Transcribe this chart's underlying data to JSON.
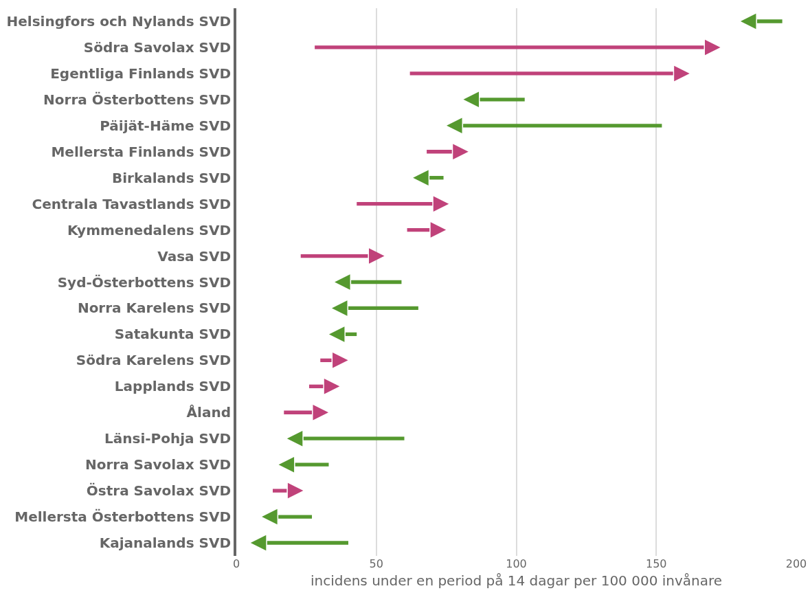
{
  "chart_data": {
    "type": "bar",
    "orientation": "horizontal",
    "xlabel": "incidens under en period på 14 dagar per 100 000 invånare",
    "categories": [
      "Helsingfors och Nylands SVD",
      "Södra Savolax SVD",
      "Egentliga Finlands SVD",
      "Norra Österbottens SVD",
      "Päijät-Häme SVD",
      "Mellersta Finlands SVD",
      "Birkalands SVD",
      "Centrala Tavastlands SVD",
      "Kymmenedalens SVD",
      "Vasa SVD",
      "Syd-Österbottens SVD",
      "Norra Karelens SVD",
      "Satakunta SVD",
      "Södra Karelens SVD",
      "Lapplands SVD",
      "Åland",
      "Länsi-Pohja SVD",
      "Norra Savolax SVD",
      "Östra Savolax SVD",
      "Mellersta Österbottens SVD",
      "Kajanalands SVD"
    ],
    "base": [
      195,
      28,
      62,
      103,
      152,
      68,
      74,
      43,
      61,
      23,
      59,
      65,
      43,
      30,
      26,
      17,
      60,
      33,
      13,
      27,
      40
    ],
    "values": [
      -9,
      139,
      94,
      -16,
      -71,
      9,
      -5,
      27,
      8,
      24,
      -18,
      -25,
      -4,
      4,
      5,
      10,
      -36,
      -12,
      5,
      -12,
      -29
    ],
    "colors": [
      "#55992f",
      "#c0427a",
      "#c0427a",
      "#55992f",
      "#55992f",
      "#c0427a",
      "#55992f",
      "#c0427a",
      "#c0427a",
      "#c0427a",
      "#55992f",
      "#55992f",
      "#55992f",
      "#c0427a",
      "#c0427a",
      "#c0427a",
      "#55992f",
      "#55992f",
      "#c0427a",
      "#55992f",
      "#55992f"
    ],
    "xlim": [
      0,
      200
    ],
    "xticks": [
      0,
      50,
      100,
      150,
      200
    ],
    "grid": "x"
  }
}
